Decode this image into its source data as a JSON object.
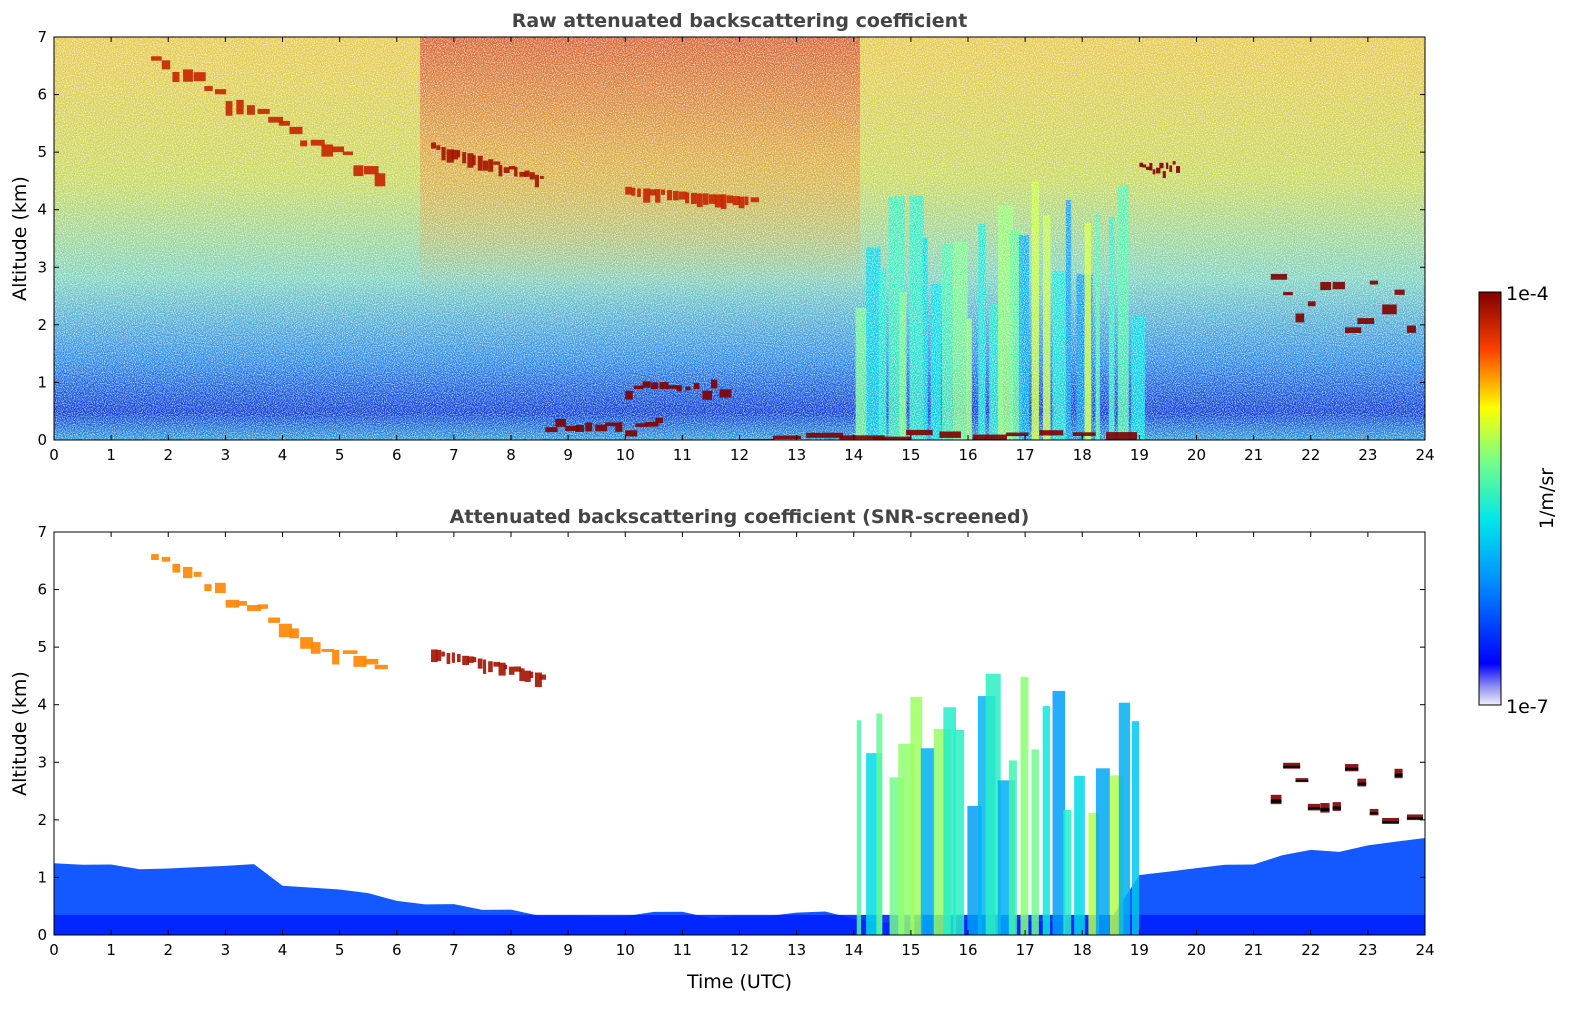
{
  "chart_data": [
    {
      "type": "heatmap",
      "title": "Raw attenuated backscattering coefficient",
      "xlabel": "",
      "ylabel": "Altitude (km)",
      "xlim": [
        0,
        24
      ],
      "ylim": [
        0,
        7
      ],
      "x_ticks": [
        0,
        1,
        2,
        3,
        4,
        5,
        6,
        7,
        8,
        9,
        10,
        11,
        12,
        13,
        14,
        15,
        16,
        17,
        18,
        19,
        20,
        21,
        22,
        23,
        24
      ],
      "y_ticks": [
        0,
        1,
        2,
        3,
        4,
        5,
        6,
        7
      ],
      "colorscale": "jet",
      "background": "noisy",
      "features": [
        {
          "kind": "cirrus",
          "x": [
            1.7,
            5.8
          ],
          "y": [
            4.4,
            6.8
          ],
          "log_value": -4.2
        },
        {
          "kind": "cirrus",
          "x": [
            6.6,
            8.6
          ],
          "y": [
            4.5,
            5.2
          ],
          "log_value": -4.1
        },
        {
          "kind": "cirrus",
          "x": [
            10.0,
            12.3
          ],
          "y": [
            4.2,
            4.4
          ],
          "log_value": -4.2
        },
        {
          "kind": "cloud",
          "x": [
            19.0,
            19.7
          ],
          "y": [
            4.65,
            4.85
          ],
          "log_value": -4.0
        },
        {
          "kind": "cloud",
          "x": [
            21.3,
            23.9
          ],
          "y": [
            1.9,
            3.0
          ],
          "log_value": -4.0
        },
        {
          "kind": "low_cloud",
          "x": [
            8.6,
            10.7
          ],
          "y": [
            0.15,
            0.4
          ],
          "log_value": -4.0
        },
        {
          "kind": "low_cloud",
          "x": [
            10.0,
            11.8
          ],
          "y": [
            0.85,
            1.05
          ],
          "log_value": -4.0
        },
        {
          "kind": "low_cloud",
          "x": [
            12.0,
            19.0
          ],
          "y": [
            0.0,
            0.2
          ],
          "log_value": -4.0
        },
        {
          "kind": "precipitation",
          "x": [
            14.0,
            19.0
          ],
          "y": [
            0.0,
            4.5
          ],
          "log_value": -5.3
        }
      ]
    },
    {
      "type": "heatmap",
      "title": "Attenuated backscattering coefficient (SNR-screened)",
      "xlabel": "Time (UTC)",
      "ylabel": "Altitude (km)",
      "xlim": [
        0,
        24
      ],
      "ylim": [
        0,
        7
      ],
      "x_ticks": [
        0,
        1,
        2,
        3,
        4,
        5,
        6,
        7,
        8,
        9,
        10,
        11,
        12,
        13,
        14,
        15,
        16,
        17,
        18,
        19,
        20,
        21,
        22,
        23,
        24
      ],
      "y_ticks": [
        0,
        1,
        2,
        3,
        4,
        5,
        6,
        7
      ],
      "colorscale": "jet",
      "background": "white",
      "features": [
        {
          "kind": "boundary_layer",
          "x": [
            0,
            24
          ],
          "y": [
            0,
            1.4
          ],
          "log_value": -6.2
        },
        {
          "kind": "cirrus",
          "x": [
            1.7,
            5.8
          ],
          "y": [
            4.4,
            6.7
          ],
          "log_value": -4.5
        },
        {
          "kind": "cirrus",
          "x": [
            6.6,
            8.6
          ],
          "y": [
            4.5,
            5.0
          ],
          "log_value": -4.1
        },
        {
          "kind": "precipitation",
          "x": [
            14.0,
            19.0
          ],
          "y": [
            0.0,
            4.6
          ],
          "log_value": -5.3
        },
        {
          "kind": "cloud",
          "x": [
            21.3,
            23.9
          ],
          "y": [
            1.9,
            3.0
          ],
          "log_value": -4.0
        }
      ]
    }
  ],
  "colorbar": {
    "label": "1/m/sr",
    "min_label": "1e-7",
    "max_label": "1e-4",
    "scale": "log",
    "range_log10": [
      -7,
      -4
    ]
  }
}
